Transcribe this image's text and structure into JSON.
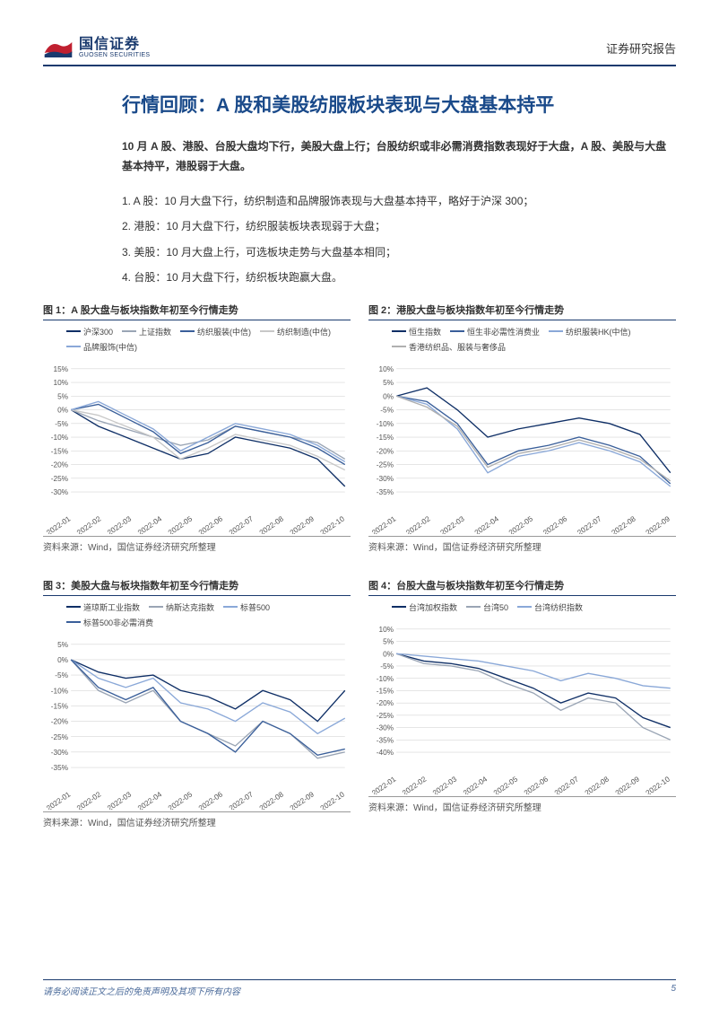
{
  "header": {
    "logo_cn": "国信证券",
    "logo_en": "GUOSEN SECURITIES",
    "report_type": "证券研究报告"
  },
  "title": "行情回顾：A 股和美股纺服板块表现与大盘基本持平",
  "summary": "10 月 A 股、港股、台股大盘均下行，美股大盘上行；台股纺织或非必需消费指数表现好于大盘，A 股、美股与大盘基本持平，港股弱于大盘。",
  "points": [
    "1. A 股：10 月大盘下行，纺织制造和品牌服饰表现与大盘基本持平，略好于沪深 300；",
    "2. 港股：10 月大盘下行，纺织服装板块表现弱于大盘；",
    "3. 美股：10 月大盘上行，可选板块走势与大盘基本相同；",
    "4. 台股：10 月大盘下行，纺织板块跑赢大盘。"
  ],
  "charts": [
    {
      "title": "图 1：A 股大盘与板块指数年初至今行情走势",
      "source": "资料来源：Wind，国信证券经济研究所整理",
      "type": "line",
      "ylim": [
        -30,
        15
      ],
      "ytick_step": 5,
      "x_labels": [
        "2022-01",
        "2022-02",
        "2022-03",
        "2022-04",
        "2022-05",
        "2022-06",
        "2022-07",
        "2022-08",
        "2022-09",
        "2022-10"
      ],
      "background_color": "#ffffff",
      "grid_color": "#d6d6d6",
      "axis_fontsize": 8,
      "line_width": 1.3,
      "series": [
        {
          "label": "沪深300",
          "color": "#0f2f66",
          "values": [
            0,
            -6,
            -10,
            -14,
            -18,
            -16,
            -10,
            -12,
            -14,
            -18,
            -28
          ]
        },
        {
          "label": "上证指数",
          "color": "#9aa5b5",
          "values": [
            0,
            -4,
            -7,
            -10,
            -13,
            -11,
            -6,
            -8,
            -10,
            -12,
            -18
          ]
        },
        {
          "label": "纺织服装(中信)",
          "color": "#3a5f9a",
          "values": [
            0,
            2,
            -3,
            -8,
            -16,
            -12,
            -6,
            -8,
            -10,
            -14,
            -20
          ]
        },
        {
          "label": "纺织制造(中信)",
          "color": "#c8c8c8",
          "values": [
            0,
            -2,
            -6,
            -10,
            -18,
            -14,
            -9,
            -11,
            -13,
            -17,
            -22
          ]
        },
        {
          "label": "品牌服饰(中信)",
          "color": "#8aa8d8",
          "values": [
            0,
            3,
            -2,
            -7,
            -15,
            -10,
            -5,
            -7,
            -9,
            -13,
            -19
          ]
        }
      ]
    },
    {
      "title": "图 2：港股大盘与板块指数年初至今行情走势",
      "source": "资料来源：Wind，国信证券经济研究所整理",
      "type": "line",
      "ylim": [
        -35,
        10
      ],
      "ytick_step": 5,
      "x_labels": [
        "2022-01",
        "2022-02",
        "2022-03",
        "2022-04",
        "2022-05",
        "2022-06",
        "2022-07",
        "2022-08",
        "2022-09"
      ],
      "background_color": "#ffffff",
      "grid_color": "#d6d6d6",
      "axis_fontsize": 8,
      "line_width": 1.3,
      "series": [
        {
          "label": "恒生指数",
          "color": "#0f2f66",
          "values": [
            0,
            3,
            -5,
            -15,
            -12,
            -10,
            -8,
            -10,
            -14,
            -28
          ]
        },
        {
          "label": "恒生非必需性消费业",
          "color": "#3a5f9a",
          "values": [
            0,
            -2,
            -10,
            -25,
            -20,
            -18,
            -15,
            -18,
            -22,
            -32
          ]
        },
        {
          "label": "纺织服装HK(中信)",
          "color": "#8aa8d8",
          "values": [
            0,
            -3,
            -12,
            -28,
            -22,
            -20,
            -17,
            -20,
            -24,
            -33
          ]
        },
        {
          "label": "香港纺织品、服装与奢侈品",
          "color": "#b0b0b0",
          "values": [
            0,
            -4,
            -11,
            -26,
            -21,
            -19,
            -16,
            -19,
            -23,
            -31
          ]
        }
      ]
    },
    {
      "title": "图 3：美股大盘与板块指数年初至今行情走势",
      "source": "资料来源：Wind，国信证券经济研究所整理",
      "type": "line",
      "ylim": [
        -35,
        5
      ],
      "ytick_step": 5,
      "x_labels": [
        "2022-01",
        "2022-02",
        "2022-03",
        "2022-04",
        "2022-05",
        "2022-06",
        "2022-07",
        "2022-08",
        "2022-09",
        "2022-10"
      ],
      "background_color": "#ffffff",
      "grid_color": "#d6d6d6",
      "axis_fontsize": 8,
      "line_width": 1.3,
      "series": [
        {
          "label": "道琼斯工业指数",
          "color": "#0f2f66",
          "values": [
            0,
            -4,
            -6,
            -5,
            -10,
            -12,
            -16,
            -10,
            -13,
            -20,
            -10
          ]
        },
        {
          "label": "纳斯达克指数",
          "color": "#9aa5b5",
          "values": [
            0,
            -10,
            -14,
            -10,
            -20,
            -24,
            -28,
            -20,
            -24,
            -32,
            -30
          ]
        },
        {
          "label": "标普500",
          "color": "#8aa8d8",
          "values": [
            0,
            -6,
            -9,
            -6,
            -14,
            -16,
            -20,
            -14,
            -17,
            -24,
            -19
          ]
        },
        {
          "label": "标普500非必需消费",
          "color": "#3a5f9a",
          "values": [
            0,
            -9,
            -13,
            -9,
            -20,
            -24,
            -30,
            -20,
            -24,
            -31,
            -29
          ]
        }
      ]
    },
    {
      "title": "图 4：台股大盘与板块指数年初至今行情走势",
      "source": "资料来源：Wind，国信证券经济研究所整理",
      "type": "line",
      "ylim": [
        -40,
        10
      ],
      "ytick_step": 5,
      "x_labels": [
        "2022-01",
        "2022-02",
        "2022-03",
        "2022-04",
        "2022-05",
        "2022-06",
        "2022-07",
        "2022-08",
        "2022-09",
        "2022-10"
      ],
      "background_color": "#ffffff",
      "grid_color": "#d6d6d6",
      "axis_fontsize": 8,
      "line_width": 1.3,
      "series": [
        {
          "label": "台湾加权指数",
          "color": "#0f2f66",
          "values": [
            0,
            -3,
            -4,
            -6,
            -10,
            -14,
            -20,
            -16,
            -18,
            -26,
            -30
          ]
        },
        {
          "label": "台湾50",
          "color": "#9aa5b5",
          "values": [
            0,
            -4,
            -5,
            -7,
            -12,
            -16,
            -23,
            -18,
            -20,
            -30,
            -35
          ]
        },
        {
          "label": "台湾纺织指数",
          "color": "#8aa8d8",
          "values": [
            0,
            -1,
            -2,
            -3,
            -5,
            -7,
            -11,
            -8,
            -10,
            -13,
            -14
          ]
        }
      ]
    }
  ],
  "footer": {
    "disclaimer": "请务必阅读正文之后的免责声明及其项下所有内容",
    "page": "5"
  },
  "colors": {
    "brand_navy": "#1a3a6e",
    "title_blue": "#1a4a8a",
    "text": "#333333"
  }
}
